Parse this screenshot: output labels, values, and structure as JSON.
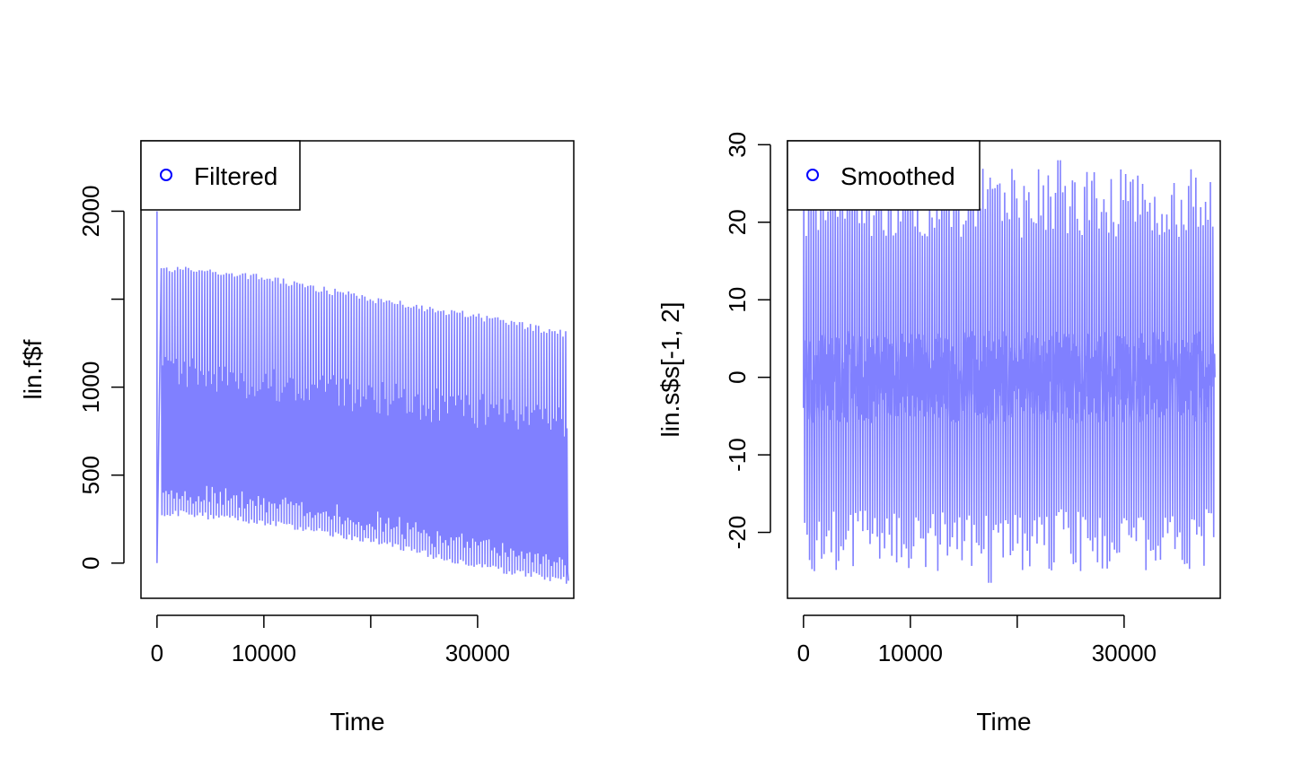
{
  "chart_data": [
    {
      "type": "line",
      "xlabel": "Time",
      "ylabel": "lin.f$f",
      "xlim": [
        -1500,
        39000
      ],
      "ylim": [
        -200,
        2400
      ],
      "x_ticks": [
        0,
        10000,
        20000,
        30000
      ],
      "x_tick_labels": [
        "0",
        "10000",
        "",
        "30000"
      ],
      "y_ticks": [
        0,
        500,
        1000,
        1500,
        2000
      ],
      "y_tick_labels": [
        "0",
        "500",
        "1000",
        "",
        "2000"
      ],
      "grid": false,
      "legend": {
        "position": "top-left",
        "entries": [
          {
            "label": "Filtered",
            "marker": "circle",
            "color": "#0000ff"
          }
        ]
      },
      "series": [
        {
          "color": "#8080ff",
          "x_range": [
            0,
            38500
          ],
          "initial_points": [
            [
              0,
              2000
            ],
            [
              0,
              0
            ]
          ],
          "oscillation_count": 150,
          "upper_envelope": [
            [
              0,
              1670
            ],
            [
              3000,
              1670
            ],
            [
              10000,
              1620
            ],
            [
              20000,
              1500
            ],
            [
              30000,
              1400
            ],
            [
              38500,
              1300
            ]
          ],
          "lower_envelope": [
            [
              0,
              280
            ],
            [
              3000,
              280
            ],
            [
              10000,
              230
            ],
            [
              20000,
              130
            ],
            [
              30000,
              -20
            ],
            [
              38500,
              -100
            ]
          ],
          "inner_band_upper": [
            [
              0,
              1100
            ],
            [
              38500,
              800
            ]
          ],
          "inner_band_lower": [
            [
              0,
              650
            ],
            [
              38500,
              300
            ]
          ]
        }
      ]
    },
    {
      "type": "line",
      "xlabel": "Time",
      "ylabel": "lin.s$s[-1, 2]",
      "xlim": [
        -1500,
        39000
      ],
      "ylim": [
        -28.5,
        30.5
      ],
      "x_ticks": [
        0,
        10000,
        20000,
        30000
      ],
      "x_tick_labels": [
        "0",
        "10000",
        "",
        "30000"
      ],
      "y_ticks": [
        -20,
        -10,
        0,
        10,
        20,
        30
      ],
      "y_tick_labels": [
        "-20",
        "-10",
        "0",
        "10",
        "20",
        "30"
      ],
      "grid": false,
      "legend": {
        "position": "top-left",
        "entries": [
          {
            "label": "Smoothed",
            "marker": "circle",
            "color": "#0000ff"
          }
        ]
      },
      "series": [
        {
          "color": "#8080ff",
          "x_range": [
            0,
            38500
          ],
          "oscillation_count": 170,
          "upper_range": [
            18,
            27
          ],
          "lower_range": [
            -25,
            -17
          ],
          "dense_band": [
            -6,
            6
          ],
          "max_point": [
            23800,
            28
          ],
          "min_point": [
            17400,
            -26.5
          ]
        }
      ]
    }
  ]
}
